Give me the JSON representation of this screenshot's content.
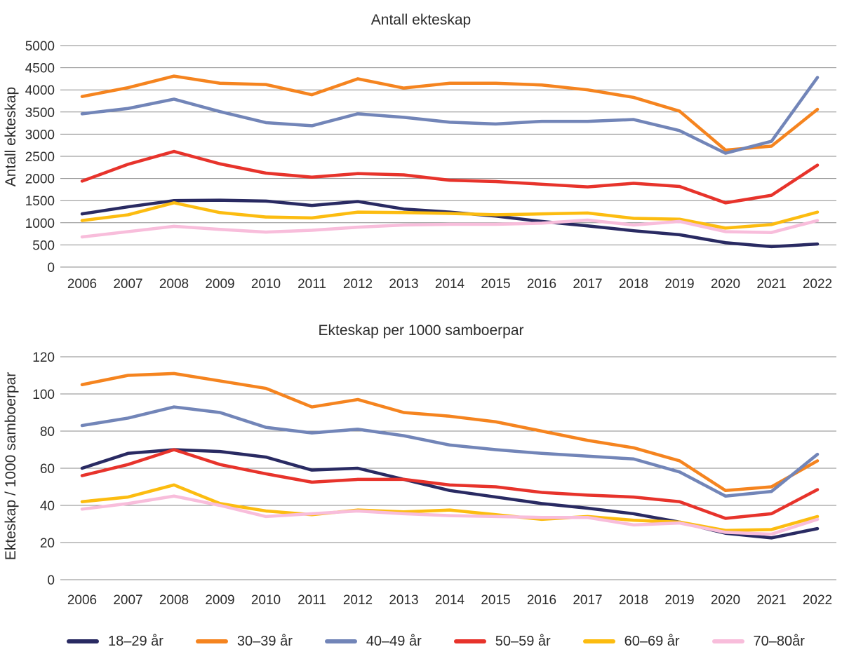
{
  "figure": {
    "background": "#ffffff",
    "text_color": "#2b2b2b",
    "gridline_color": "#8a8a8a"
  },
  "chart_data": [
    {
      "type": "line",
      "title": "Antall ekteskap",
      "xlabel": "",
      "ylabel": "Antall ekteskap",
      "x": [
        "2006",
        "2007",
        "2008",
        "2009",
        "2010",
        "2011",
        "2012",
        "2013",
        "2014",
        "2015",
        "2016",
        "2017",
        "2018",
        "2019",
        "2020",
        "2021",
        "2022"
      ],
      "ylim": [
        0,
        5000
      ],
      "yticks": [
        5000,
        4500,
        4000,
        3500,
        3000,
        2500,
        2000,
        1500,
        1000,
        500,
        0
      ],
      "grid": "horizontal",
      "legend_position": "shared-bottom",
      "series": [
        {
          "name": "18–29 år",
          "color": "#292A62",
          "values": [
            1200,
            1360,
            1500,
            1510,
            1490,
            1390,
            1480,
            1310,
            1240,
            1150,
            1030,
            930,
            820,
            730,
            550,
            460,
            520
          ]
        },
        {
          "name": "30–39 år",
          "color": "#F5841F",
          "values": [
            3850,
            4050,
            4310,
            4150,
            4120,
            3890,
            4250,
            4040,
            4150,
            4150,
            4110,
            4000,
            3830,
            3520,
            2640,
            2730,
            3560
          ]
        },
        {
          "name": "40–49 år",
          "color": "#7285B8",
          "values": [
            3460,
            3580,
            3790,
            3510,
            3260,
            3190,
            3460,
            3380,
            3270,
            3230,
            3290,
            3290,
            3330,
            3080,
            2570,
            2840,
            4280
          ]
        },
        {
          "name": "50–59 år",
          "color": "#E7332B",
          "values": [
            1940,
            2320,
            2610,
            2330,
            2120,
            2030,
            2110,
            2080,
            1960,
            1930,
            1870,
            1810,
            1890,
            1820,
            1450,
            1620,
            2300
          ]
        },
        {
          "name": "60–69 år",
          "color": "#FCBC10",
          "values": [
            1050,
            1180,
            1450,
            1230,
            1130,
            1110,
            1240,
            1230,
            1210,
            1180,
            1200,
            1220,
            1100,
            1080,
            880,
            960,
            1240
          ]
        },
        {
          "name": "70–80år",
          "color": "#F8BDDB",
          "values": [
            680,
            800,
            920,
            850,
            790,
            830,
            900,
            950,
            965,
            965,
            990,
            1060,
            950,
            1030,
            800,
            780,
            1050
          ]
        }
      ]
    },
    {
      "type": "line",
      "title": "Ekteskap per 1000 samboerpar",
      "xlabel": "",
      "ylabel": "Ekteskap / 1000 samboerpar",
      "x": [
        "2006",
        "2007",
        "2008",
        "2009",
        "2010",
        "2011",
        "2012",
        "2013",
        "2014",
        "2015",
        "2016",
        "2017",
        "2018",
        "2019",
        "2020",
        "2021",
        "2022"
      ],
      "ylim": [
        0,
        120
      ],
      "yticks": [
        120,
        100,
        80,
        60,
        40,
        20,
        0
      ],
      "grid": "horizontal",
      "legend_position": "shared-bottom",
      "series": [
        {
          "name": "18–29 år",
          "color": "#292A62",
          "values": [
            60,
            68,
            70,
            69,
            66,
            59,
            60,
            54,
            48,
            44.5,
            41,
            38.5,
            35.5,
            31,
            25,
            22.5,
            27.5
          ]
        },
        {
          "name": "30–39 år",
          "color": "#F5841F",
          "values": [
            105,
            110,
            111,
            107,
            103,
            93,
            97,
            90,
            88,
            85,
            80,
            75,
            71,
            64,
            48,
            50,
            64
          ]
        },
        {
          "name": "40–49 år",
          "color": "#7285B8",
          "values": [
            83,
            87,
            93,
            90,
            82,
            79,
            81,
            77.5,
            72.5,
            70,
            68,
            66.5,
            65,
            58,
            45,
            47.5,
            67.5
          ]
        },
        {
          "name": "50–59 år",
          "color": "#E7332B",
          "values": [
            56,
            62,
            70,
            62,
            57,
            52.5,
            54,
            54,
            51,
            50,
            47,
            45.5,
            44.5,
            42,
            33,
            35.5,
            48.5
          ]
        },
        {
          "name": "60–69 år",
          "color": "#FCBC10",
          "values": [
            42,
            44.5,
            51,
            41,
            37,
            35,
            37.5,
            36.5,
            37.5,
            35,
            32.5,
            34,
            32,
            31,
            26.5,
            27,
            34
          ]
        },
        {
          "name": "70–80år",
          "color": "#F8BDDB",
          "values": [
            38,
            41,
            45,
            40,
            34,
            35.5,
            37,
            35.5,
            34.5,
            34,
            33.5,
            33.5,
            29.5,
            30.5,
            25.5,
            24.5,
            32.5
          ]
        }
      ]
    }
  ],
  "legend": {
    "items": [
      {
        "label": "18–29 år",
        "color": "#292A62"
      },
      {
        "label": "30–39 år",
        "color": "#F5841F"
      },
      {
        "label": "40–49 år",
        "color": "#7285B8"
      },
      {
        "label": "50–59 år",
        "color": "#E7332B"
      },
      {
        "label": "60–69 år",
        "color": "#FCBC10"
      },
      {
        "label": "70–80år",
        "color": "#F8BDDB"
      }
    ]
  }
}
